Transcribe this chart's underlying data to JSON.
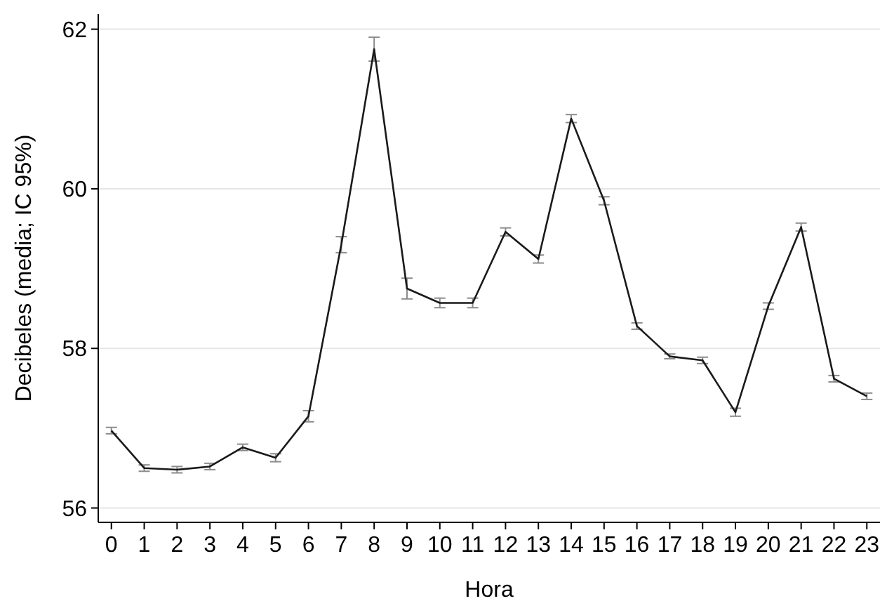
{
  "chart_data": {
    "type": "line",
    "xlabel": "Hora",
    "ylabel": "Decibeles (media; IC 95%)",
    "x": [
      0,
      1,
      2,
      3,
      4,
      5,
      6,
      7,
      8,
      9,
      10,
      11,
      12,
      13,
      14,
      15,
      16,
      17,
      18,
      19,
      20,
      21,
      22,
      23
    ],
    "series": [
      {
        "color": "#1a1a1a",
        "values": [
          56.97,
          56.5,
          56.48,
          56.52,
          56.76,
          56.63,
          57.15,
          59.3,
          61.75,
          58.75,
          58.57,
          58.57,
          59.46,
          59.12,
          60.88,
          59.85,
          58.28,
          57.9,
          57.85,
          57.2,
          58.53,
          59.52,
          57.62,
          57.4
        ],
        "errors": [
          0.04,
          0.04,
          0.04,
          0.04,
          0.04,
          0.05,
          0.07,
          0.1,
          0.15,
          0.13,
          0.06,
          0.06,
          0.05,
          0.05,
          0.05,
          0.05,
          0.04,
          0.03,
          0.04,
          0.05,
          0.04,
          0.05,
          0.04,
          0.04
        ]
      }
    ],
    "xlim": [
      -0.4,
      23.4
    ],
    "xticks": [
      0,
      1,
      2,
      3,
      4,
      5,
      6,
      7,
      8,
      9,
      10,
      11,
      12,
      13,
      14,
      15,
      16,
      17,
      18,
      19,
      20,
      21,
      22,
      23
    ],
    "ylim": [
      55.82,
      62.19
    ],
    "yticks": [
      56,
      58,
      60,
      62
    ],
    "grid": "y",
    "marker": "none",
    "line_style": "solid"
  }
}
